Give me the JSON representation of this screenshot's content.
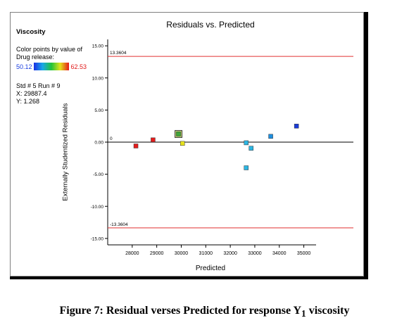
{
  "chart_data": {
    "type": "scatter",
    "title": "Residuals vs. Predicted",
    "xlabel": "Predicted",
    "ylabel": "Externally Studentized Residuals",
    "xlim": [
      27000,
      35500
    ],
    "ylim": [
      -16,
      16
    ],
    "x_ticks": [
      28000,
      29000,
      30000,
      31000,
      32000,
      33000,
      34000,
      35000
    ],
    "x_tick_labels": [
      "28000",
      "29000",
      "30000",
      "31000",
      "32000",
      "33000",
      "34000",
      "35000"
    ],
    "y_ticks": [
      15,
      10,
      5,
      0,
      -5,
      -10,
      -15
    ],
    "y_tick_labels": [
      "15.00",
      "10.00",
      "5.00",
      "0.00",
      "-5.00",
      "-10.00",
      "-15.00"
    ],
    "grid": false,
    "reference_lines": [
      {
        "y": 13.3604,
        "label": "13.3604",
        "color": "#e03030"
      },
      {
        "y": 0,
        "label": "0",
        "color": "#000000"
      },
      {
        "y": -13.3604,
        "label": "-13.3604",
        "color": "#e03030"
      }
    ],
    "points": [
      {
        "x": 28150,
        "y": -0.6,
        "color": "#e41c1c"
      },
      {
        "x": 28850,
        "y": 0.35,
        "color": "#e41c1c"
      },
      {
        "x": 29887.4,
        "y": 1.268,
        "color": "#3da53a",
        "highlighted": true
      },
      {
        "x": 30050,
        "y": -0.2,
        "color": "#e6e21c"
      },
      {
        "x": 32650,
        "y": -0.1,
        "color": "#2cb6e3"
      },
      {
        "x": 32850,
        "y": -0.95,
        "color": "#2cb6e3"
      },
      {
        "x": 32650,
        "y": -4.0,
        "color": "#2cb6e3"
      },
      {
        "x": 33650,
        "y": 0.9,
        "color": "#1e8fe0"
      },
      {
        "x": 34700,
        "y": 2.5,
        "color": "#1a3bd8"
      }
    ]
  },
  "sidebar": {
    "title": "Viscosity",
    "color_by_line1": "Color points by value of",
    "color_by_line2": "Drug release:",
    "gradient_min": "50.12",
    "gradient_max": "62.53",
    "std_run": "Std # 5 Run # 9",
    "x_value": "X: 29887.4",
    "y_value": "Y: 1.268"
  },
  "caption": {
    "prefix": "Figure 7: Residual verses Predicted for response Y",
    "subscript": "1",
    "suffix": " viscosity"
  }
}
